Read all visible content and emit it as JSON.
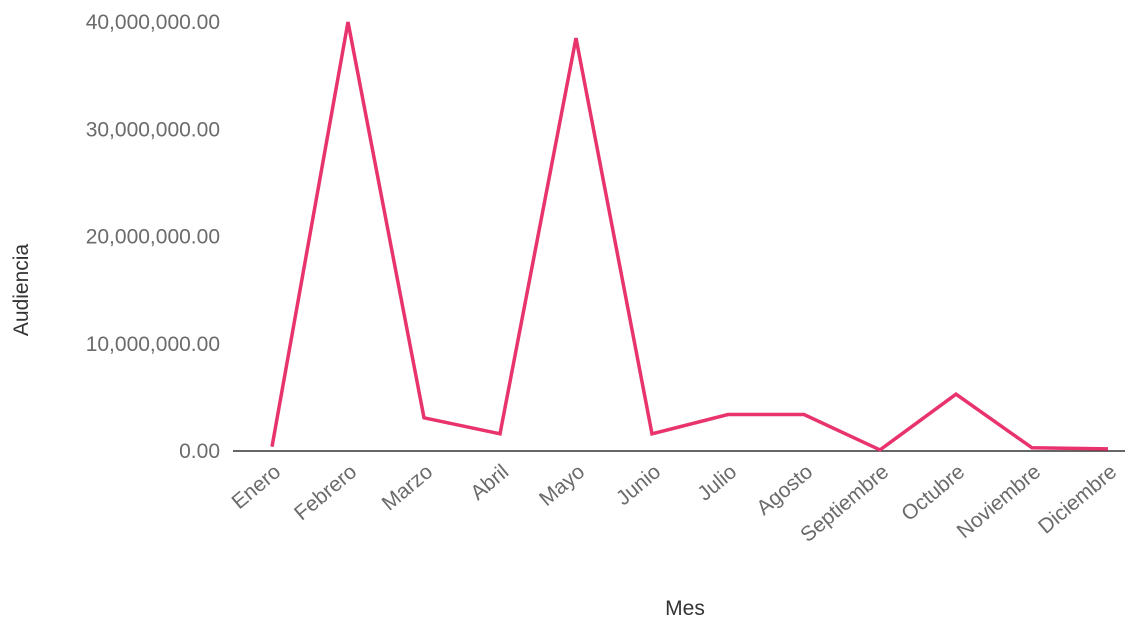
{
  "chart_data": {
    "type": "line",
    "title": "",
    "xlabel": "Mes",
    "ylabel": "Audiencia",
    "categories": [
      "Enero",
      "Febrero",
      "Marzo",
      "Abril",
      "Mayo",
      "Junio",
      "Julio",
      "Agosto",
      "Septiembre",
      "Octubre",
      "Noviembre",
      "Diciembre"
    ],
    "series": [
      {
        "color": "#e8336d",
        "values": [
          400000,
          40000000,
          3100000,
          1600000,
          38500000,
          1600000,
          3400000,
          3400000,
          100000,
          5300000,
          300000,
          200000
        ]
      }
    ],
    "ylim": [
      0,
      40000000
    ],
    "yticks": [
      0,
      10000000,
      20000000,
      30000000,
      40000000
    ],
    "ytick_labels": [
      "0.00",
      "10,000,000.00",
      "20,000,000.00",
      "30,000,000.00",
      "40,000,000.00"
    ],
    "grid": false,
    "legend": "none",
    "colors": {
      "line": "#e8336d",
      "baseline": "#333333",
      "tick_text": "#6b6b6b",
      "axis_title": "#333333"
    }
  }
}
